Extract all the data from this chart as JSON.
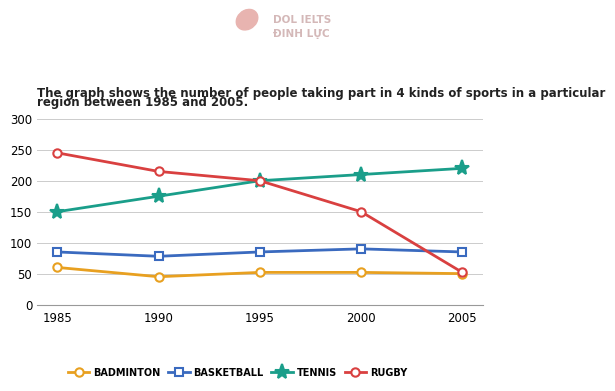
{
  "years": [
    1985,
    1990,
    1995,
    2000,
    2005
  ],
  "series": {
    "BADMINTON": {
      "values": [
        60,
        45,
        52,
        52,
        50
      ],
      "color": "#e8a020",
      "marker": "o",
      "markersize": 6,
      "markerfilled": false
    },
    "BASKETBALL": {
      "values": [
        85,
        78,
        85,
        90,
        85
      ],
      "color": "#3a6abf",
      "marker": "s",
      "markersize": 6,
      "markerfilled": false
    },
    "TENNIS": {
      "values": [
        150,
        175,
        200,
        210,
        220
      ],
      "color": "#1a9e8a",
      "marker": "*",
      "markersize": 11,
      "markerfilled": true
    },
    "RUGBY": {
      "values": [
        245,
        215,
        200,
        150,
        52
      ],
      "color": "#d94040",
      "marker": "o",
      "markersize": 6,
      "markerfilled": false
    }
  },
  "title_line1": "The graph shows the number of people taking part in 4 kinds of sports in a particular",
  "title_line2": "region between 1985 and 2005.",
  "ylim": [
    0,
    310
  ],
  "yticks": [
    0,
    50,
    100,
    150,
    200,
    250,
    300
  ],
  "xticks": [
    1985,
    1990,
    1995,
    2000,
    2005
  ],
  "background_color": "#ffffff",
  "grid_color": "#cccccc",
  "linewidth": 2.0,
  "title_fontsize": 8.5,
  "tick_fontsize": 8.5,
  "legend_fontsize": 7.0,
  "watermark_text": "DOL IELTS\nĐINH LỰC",
  "watermark_color": "#d4b8b8"
}
